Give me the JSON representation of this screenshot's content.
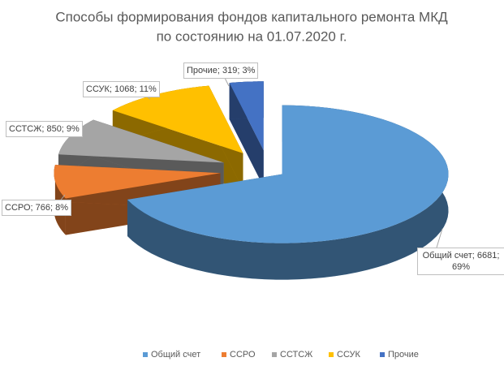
{
  "chart_data": {
    "type": "pie3d",
    "title": [
      "Способы формирования фондов капитального ремонта МКД",
      "по состоянию на 01.07.2020 г."
    ],
    "categories": [
      "Общий счет",
      "ССРО",
      "ССТСЖ",
      "ССУК",
      "Прочие"
    ],
    "values": [
      6681,
      766,
      850,
      1068,
      319
    ],
    "value_labels": [
      "Общий счет; 6681; 69%",
      "ССРО; 766; 8%",
      "ССТСЖ; 850; 9%",
      "ССУК; 1068; 11%",
      "Прочие; 319; 3%"
    ],
    "colors": [
      "#5b9bd5",
      "#ed7d31",
      "#a5a5a5",
      "#ffc000",
      "#4472c4"
    ],
    "legend": "bottom"
  }
}
